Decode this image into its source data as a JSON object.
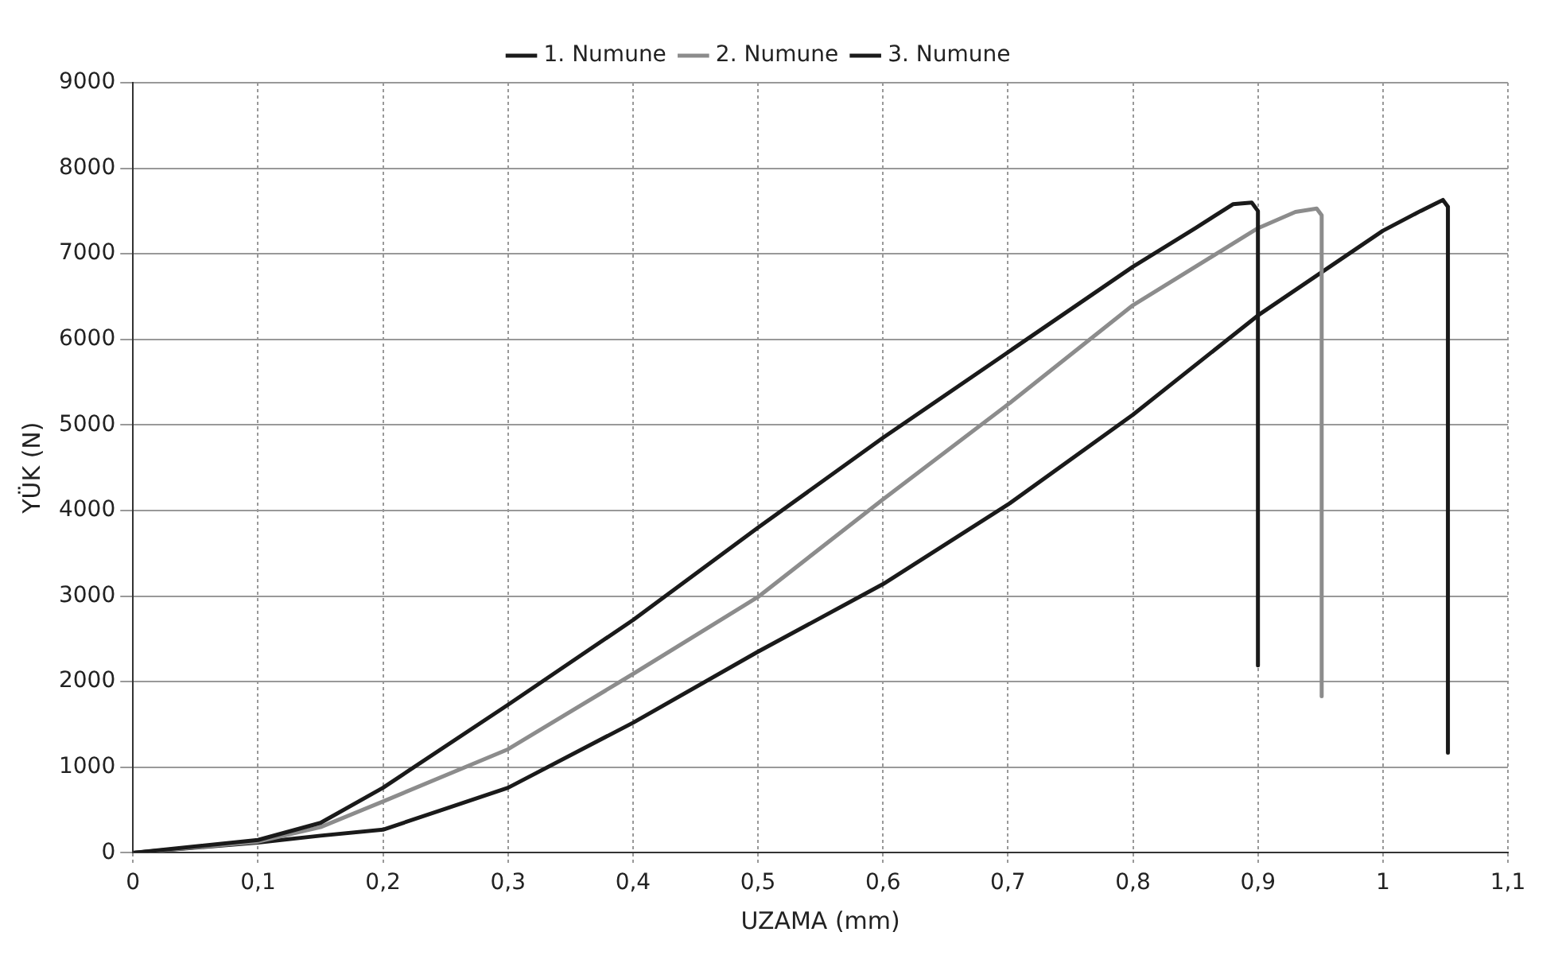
{
  "chart_data": {
    "type": "line",
    "xlabel": "UZAMA (mm)",
    "ylabel": "YÜK (N)",
    "xlim": [
      0,
      1.1
    ],
    "xticks": [
      0,
      {
        "value": 0.1,
        "label": "0,1"
      },
      {
        "value": 0.2,
        "label": "0,2"
      },
      {
        "value": 0.3,
        "label": "0,3"
      },
      {
        "value": 0.4,
        "label": "0,4"
      },
      {
        "value": 0.5,
        "label": "0,5"
      },
      {
        "value": 0.6,
        "label": "0,6"
      },
      {
        "value": 0.7,
        "label": "0,7"
      },
      {
        "value": 0.8,
        "label": "0,8"
      },
      {
        "value": 0.9,
        "label": "0,9"
      },
      1,
      {
        "value": 1.1,
        "label": "1,1"
      }
    ],
    "ylim": [
      0,
      9000
    ],
    "yticks": [
      0,
      1000,
      2000,
      3000,
      4000,
      5000,
      6000,
      7000,
      8000,
      9000
    ],
    "grid": true,
    "legend": "top",
    "marker": "none",
    "line_style": "solid",
    "series": [
      {
        "name": "1. Numune",
        "color": "#1a1a1a",
        "x": [
          0,
          0.1,
          0.15,
          0.2,
          0.3,
          0.4,
          0.5,
          0.6,
          0.7,
          0.8,
          0.85,
          0.88,
          0.895,
          0.9,
          0.9
        ],
        "values": [
          0,
          150,
          350,
          760,
          1730,
          2720,
          3800,
          4850,
          5850,
          6850,
          7300,
          7580,
          7600,
          7500,
          2190
        ]
      },
      {
        "name": "2. Numune",
        "color": "#8c8c8c",
        "x": [
          0,
          0.1,
          0.15,
          0.2,
          0.3,
          0.4,
          0.5,
          0.6,
          0.7,
          0.8,
          0.9,
          0.93,
          0.947,
          0.951,
          0.951
        ],
        "values": [
          0,
          130,
          300,
          600,
          1210,
          2090,
          2990,
          4130,
          5240,
          6400,
          7300,
          7490,
          7530,
          7450,
          1830
        ]
      },
      {
        "name": "3. Numune",
        "color": "#1a1a1a",
        "x": [
          0,
          0.1,
          0.15,
          0.2,
          0.3,
          0.4,
          0.5,
          0.6,
          0.7,
          0.8,
          0.9,
          1,
          1.03,
          1.048,
          1.052,
          1.052
        ],
        "values": [
          0,
          120,
          200,
          270,
          760,
          1520,
          2350,
          3140,
          4070,
          5120,
          6280,
          7270,
          7500,
          7630,
          7550,
          1170
        ]
      }
    ]
  }
}
